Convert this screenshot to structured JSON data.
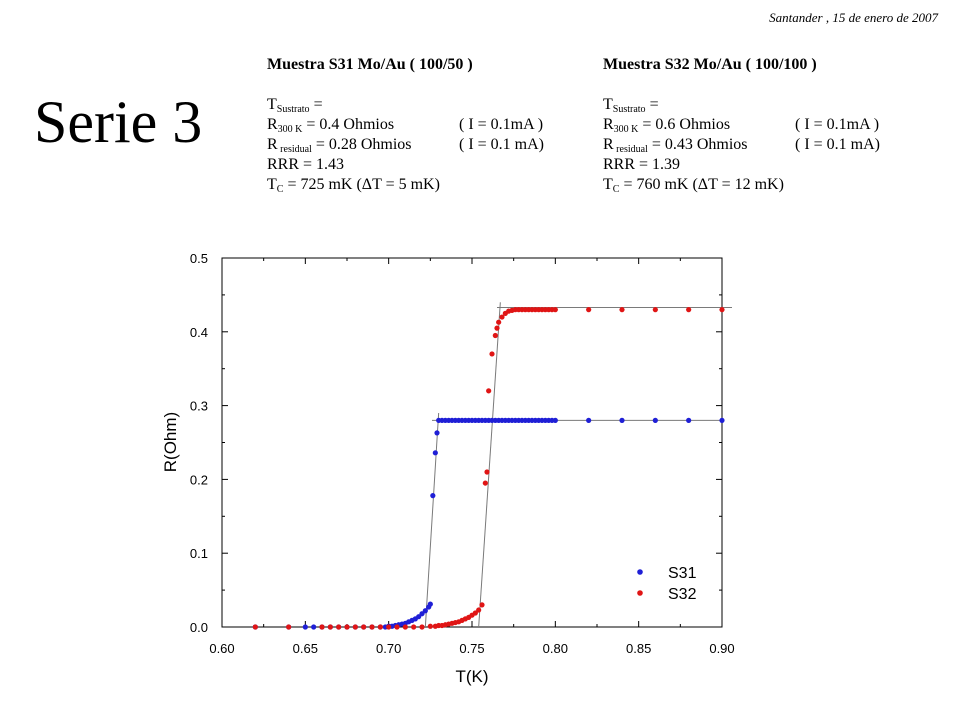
{
  "header": {
    "date": "Santander , 15 de enero de 2007",
    "serie_title": "Serie 3"
  },
  "samples": [
    {
      "title": "Muestra S31 Mo/Au ( 100/50 )",
      "t_sustrato_main": "T",
      "t_sustrato_sub": "Sustrato",
      "t_sustrato_tail": " =",
      "r300_main": "R",
      "r300_sub": "300 K",
      "r300_tail": " = 0.4 Ohmios",
      "r300_cond": "( I = 0.1mA )",
      "rres_main": "R",
      "rres_sub": " residual",
      "rres_tail": " = 0.28 Ohmios",
      "rres_cond": "( I = 0.1 mA)",
      "rrr": "RRR = 1.43",
      "tc_main": "T",
      "tc_sub": "C",
      "tc_tail": " = 725 mK (ΔT = 5 mK)"
    },
    {
      "title": "Muestra S32 Mo/Au ( 100/100 )",
      "t_sustrato_main": "T",
      "t_sustrato_sub": "Sustrato",
      "t_sustrato_tail": " =",
      "r300_main": "R",
      "r300_sub": "300 K",
      "r300_tail": " = 0.6 Ohmios",
      "r300_cond": "( I = 0.1mA )",
      "rres_main": "R",
      "rres_sub": " residual",
      "rres_tail": " = 0.43 Ohmios",
      "rres_cond": "( I = 0.1 mA)",
      "rrr": "RRR = 1.39",
      "tc_main": "T",
      "tc_sub": "C",
      "tc_tail": " = 760 mK (ΔT = 12 mK)"
    }
  ],
  "chart_data": {
    "type": "scatter",
    "xlabel": "T(K)",
    "ylabel": "R(Ohm)",
    "xlim": [
      0.6,
      0.9
    ],
    "ylim": [
      0.0,
      0.5
    ],
    "xticks": [
      "0.60",
      "0.65",
      "0.70",
      "0.75",
      "0.80",
      "0.85",
      "0.90"
    ],
    "yticks": [
      "0.0",
      "0.1",
      "0.2",
      "0.3",
      "0.4",
      "0.5"
    ],
    "legend_position": "bottom-right",
    "grid": false,
    "series": [
      {
        "name": "S31",
        "color": "#1f1fd6",
        "x": [
          0.62,
          0.64,
          0.65,
          0.655,
          0.66,
          0.665,
          0.67,
          0.675,
          0.68,
          0.685,
          0.69,
          0.695,
          0.698,
          0.7,
          0.702,
          0.704,
          0.706,
          0.708,
          0.71,
          0.712,
          0.714,
          0.716,
          0.718,
          0.72,
          0.722,
          0.724,
          0.725,
          0.7265,
          0.728,
          0.729,
          0.73,
          0.732,
          0.734,
          0.736,
          0.738,
          0.74,
          0.742,
          0.744,
          0.746,
          0.748,
          0.75,
          0.752,
          0.754,
          0.756,
          0.758,
          0.76,
          0.762,
          0.764,
          0.766,
          0.768,
          0.77,
          0.772,
          0.774,
          0.776,
          0.778,
          0.78,
          0.782,
          0.784,
          0.786,
          0.788,
          0.79,
          0.792,
          0.794,
          0.796,
          0.798,
          0.8,
          0.82,
          0.84,
          0.86,
          0.88,
          0.9
        ],
        "y": [
          0.0,
          0.0,
          0.0,
          0.0,
          0.0,
          0.0,
          0.0,
          0.0,
          0.0,
          0.0,
          0.0,
          0.0,
          0.0,
          0.001,
          0.001,
          0.002,
          0.003,
          0.004,
          0.005,
          0.007,
          0.009,
          0.011,
          0.014,
          0.018,
          0.022,
          0.027,
          0.031,
          0.178,
          0.236,
          0.263,
          0.28,
          0.28,
          0.28,
          0.28,
          0.28,
          0.28,
          0.28,
          0.28,
          0.28,
          0.28,
          0.28,
          0.28,
          0.28,
          0.28,
          0.28,
          0.28,
          0.28,
          0.28,
          0.28,
          0.28,
          0.28,
          0.28,
          0.28,
          0.28,
          0.28,
          0.28,
          0.28,
          0.28,
          0.28,
          0.28,
          0.28,
          0.28,
          0.28,
          0.28,
          0.28,
          0.28,
          0.28,
          0.28,
          0.28,
          0.28,
          0.28
        ]
      },
      {
        "name": "S32",
        "color": "#e01515",
        "x": [
          0.62,
          0.64,
          0.66,
          0.665,
          0.67,
          0.675,
          0.68,
          0.685,
          0.69,
          0.695,
          0.7,
          0.705,
          0.71,
          0.715,
          0.72,
          0.725,
          0.728,
          0.73,
          0.732,
          0.734,
          0.736,
          0.738,
          0.74,
          0.742,
          0.744,
          0.746,
          0.748,
          0.75,
          0.752,
          0.754,
          0.756,
          0.758,
          0.759,
          0.76,
          0.762,
          0.764,
          0.765,
          0.766,
          0.768,
          0.77,
          0.772,
          0.774,
          0.776,
          0.778,
          0.78,
          0.782,
          0.784,
          0.786,
          0.788,
          0.79,
          0.792,
          0.794,
          0.796,
          0.798,
          0.8,
          0.82,
          0.84,
          0.86,
          0.88,
          0.9
        ],
        "y": [
          0.0,
          0.0,
          0.0,
          0.0,
          0.0,
          0.0,
          0.0,
          0.0,
          0.0,
          0.0,
          0.0,
          0.0,
          0.0,
          0.0,
          0.0,
          0.001,
          0.001,
          0.002,
          0.002,
          0.003,
          0.004,
          0.005,
          0.006,
          0.007,
          0.009,
          0.011,
          0.013,
          0.016,
          0.019,
          0.023,
          0.03,
          0.195,
          0.21,
          0.32,
          0.37,
          0.395,
          0.405,
          0.413,
          0.42,
          0.425,
          0.428,
          0.429,
          0.43,
          0.43,
          0.43,
          0.43,
          0.43,
          0.43,
          0.43,
          0.43,
          0.43,
          0.43,
          0.43,
          0.43,
          0.43,
          0.43,
          0.43,
          0.43,
          0.43,
          0.43
        ]
      }
    ],
    "fit_lines": [
      {
        "x": [
          0.722,
          0.73
        ],
        "y": [
          0.0,
          0.29
        ]
      },
      {
        "x": [
          0.726,
          0.9
        ],
        "y": [
          0.28,
          0.28
        ]
      },
      {
        "x": [
          0.754,
          0.767
        ],
        "y": [
          0.0,
          0.44
        ]
      },
      {
        "x": [
          0.765,
          0.906
        ],
        "y": [
          0.433,
          0.433
        ]
      }
    ]
  }
}
